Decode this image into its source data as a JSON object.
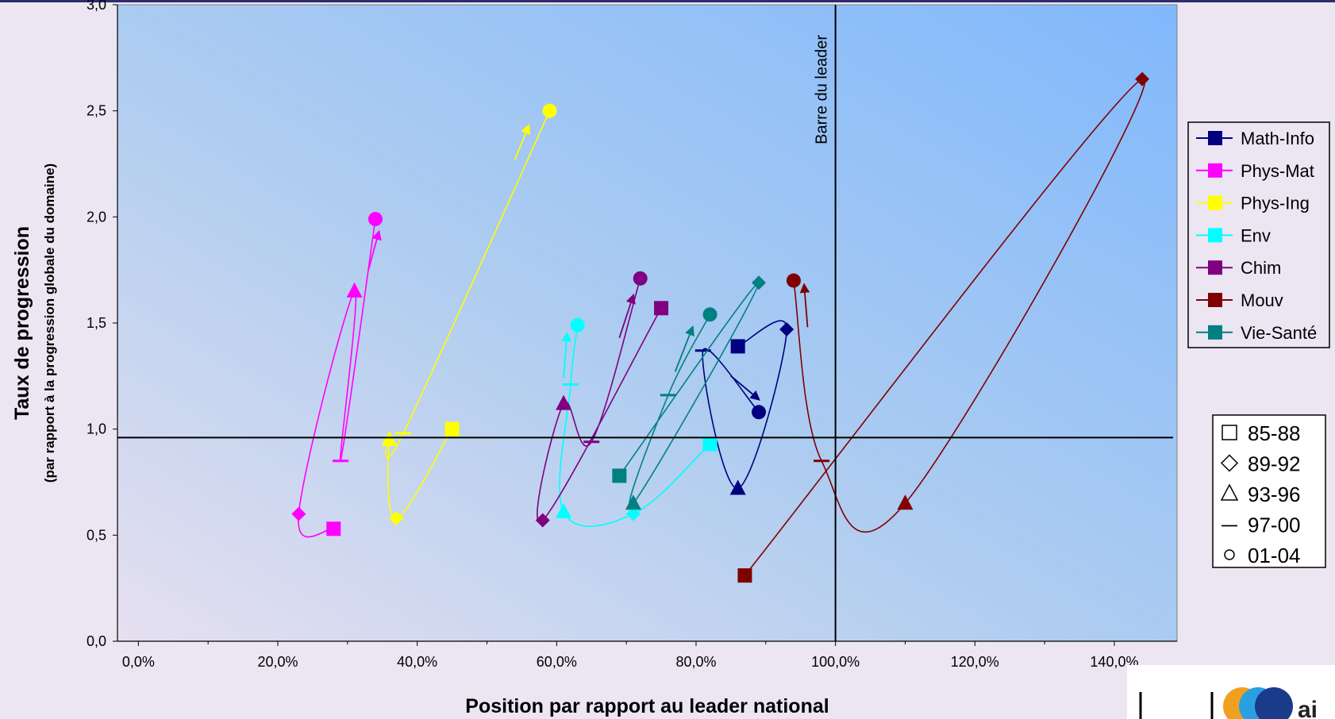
{
  "chart_data": {
    "type": "scatter",
    "xlabel": "Position par rapport au leader national",
    "ylabel": "Taux de progression",
    "ylabel_sub": "(par rapport à la progression globale du domaine)",
    "xlim": [
      -0.03,
      1.49
    ],
    "ylim": [
      0,
      3.0
    ],
    "x_ticks": [
      0,
      0.2,
      0.4,
      0.6,
      0.8,
      1.0,
      1.2,
      1.4
    ],
    "x_tick_labels": [
      "0,0%",
      "20,0%",
      "40,0%",
      "60,0%",
      "80,0%",
      "100,0%",
      "120,0%",
      "140,0%"
    ],
    "y_ticks": [
      0,
      0.5,
      1.0,
      1.5,
      2.0,
      2.5,
      3.0
    ],
    "y_tick_labels": [
      "0,0",
      "0,5",
      "1,0",
      "1,5",
      "2,0",
      "2,5",
      "3,0"
    ],
    "reference_lines": {
      "horizontal_y": 0.96,
      "vertical_x": 1.0,
      "vertical_label": "Barre du leader"
    },
    "period_markers": [
      {
        "period": "85-88",
        "marker": "square"
      },
      {
        "period": "89-92",
        "marker": "diamond"
      },
      {
        "period": "93-96",
        "marker": "triangle"
      },
      {
        "period": "97-00",
        "marker": "dash"
      },
      {
        "period": "01-04",
        "marker": "circle"
      }
    ],
    "series": [
      {
        "name": "Math-Info",
        "color": "#000080",
        "points": [
          [
            0.86,
            1.39
          ],
          [
            0.93,
            1.47
          ],
          [
            0.86,
            0.72
          ],
          [
            0.81,
            1.37
          ],
          [
            0.89,
            1.08
          ]
        ],
        "arrow": [
          [
            0.85,
            1.25
          ],
          [
            0.89,
            1.14
          ]
        ]
      },
      {
        "name": "Phys-Mat",
        "color": "#ff00ff",
        "points": [
          [
            0.28,
            0.53
          ],
          [
            0.23,
            0.6
          ],
          [
            0.31,
            1.65
          ],
          [
            0.29,
            0.85
          ],
          [
            0.34,
            1.99
          ]
        ],
        "arrow": [
          [
            0.33,
            1.75
          ],
          [
            0.345,
            1.93
          ]
        ]
      },
      {
        "name": "Phys-Ing",
        "color": "#ffff00",
        "points": [
          [
            0.45,
            1.0
          ],
          [
            0.37,
            0.58
          ],
          [
            0.36,
            0.95
          ],
          [
            0.38,
            0.98
          ],
          [
            0.59,
            2.5
          ]
        ],
        "arrow": [
          [
            0.54,
            2.27
          ],
          [
            0.56,
            2.43
          ]
        ]
      },
      {
        "name": "Env",
        "color": "#00ffff",
        "points": [
          [
            0.82,
            0.93
          ],
          [
            0.71,
            0.6
          ],
          [
            0.61,
            0.61
          ],
          [
            0.62,
            1.21
          ],
          [
            0.63,
            1.49
          ]
        ],
        "arrow": [
          [
            0.61,
            1.24
          ],
          [
            0.615,
            1.45
          ]
        ]
      },
      {
        "name": "Chim",
        "color": "#800080",
        "points": [
          [
            0.75,
            1.57
          ],
          [
            0.58,
            0.57
          ],
          [
            0.61,
            1.12
          ],
          [
            0.65,
            0.94
          ],
          [
            0.72,
            1.71
          ]
        ],
        "arrow": [
          [
            0.69,
            1.43
          ],
          [
            0.71,
            1.63
          ]
        ]
      },
      {
        "name": "Mouv",
        "color": "#800000",
        "points": [
          [
            0.87,
            0.31
          ],
          [
            1.44,
            2.65
          ],
          [
            1.1,
            0.65
          ],
          [
            0.98,
            0.85
          ],
          [
            0.94,
            1.7
          ]
        ],
        "arrow": [
          [
            0.96,
            1.48
          ],
          [
            0.955,
            1.68
          ]
        ]
      },
      {
        "name": "Vie-Santé",
        "color": "#008080",
        "points": [
          [
            0.69,
            0.78
          ],
          [
            0.89,
            1.69
          ],
          [
            0.71,
            0.65
          ],
          [
            0.76,
            1.16
          ],
          [
            0.82,
            1.54
          ]
        ],
        "arrow": [
          [
            0.77,
            1.27
          ],
          [
            0.795,
            1.48
          ]
        ]
      }
    ],
    "legend_position": "right"
  },
  "logo": {
    "text": "ai"
  }
}
